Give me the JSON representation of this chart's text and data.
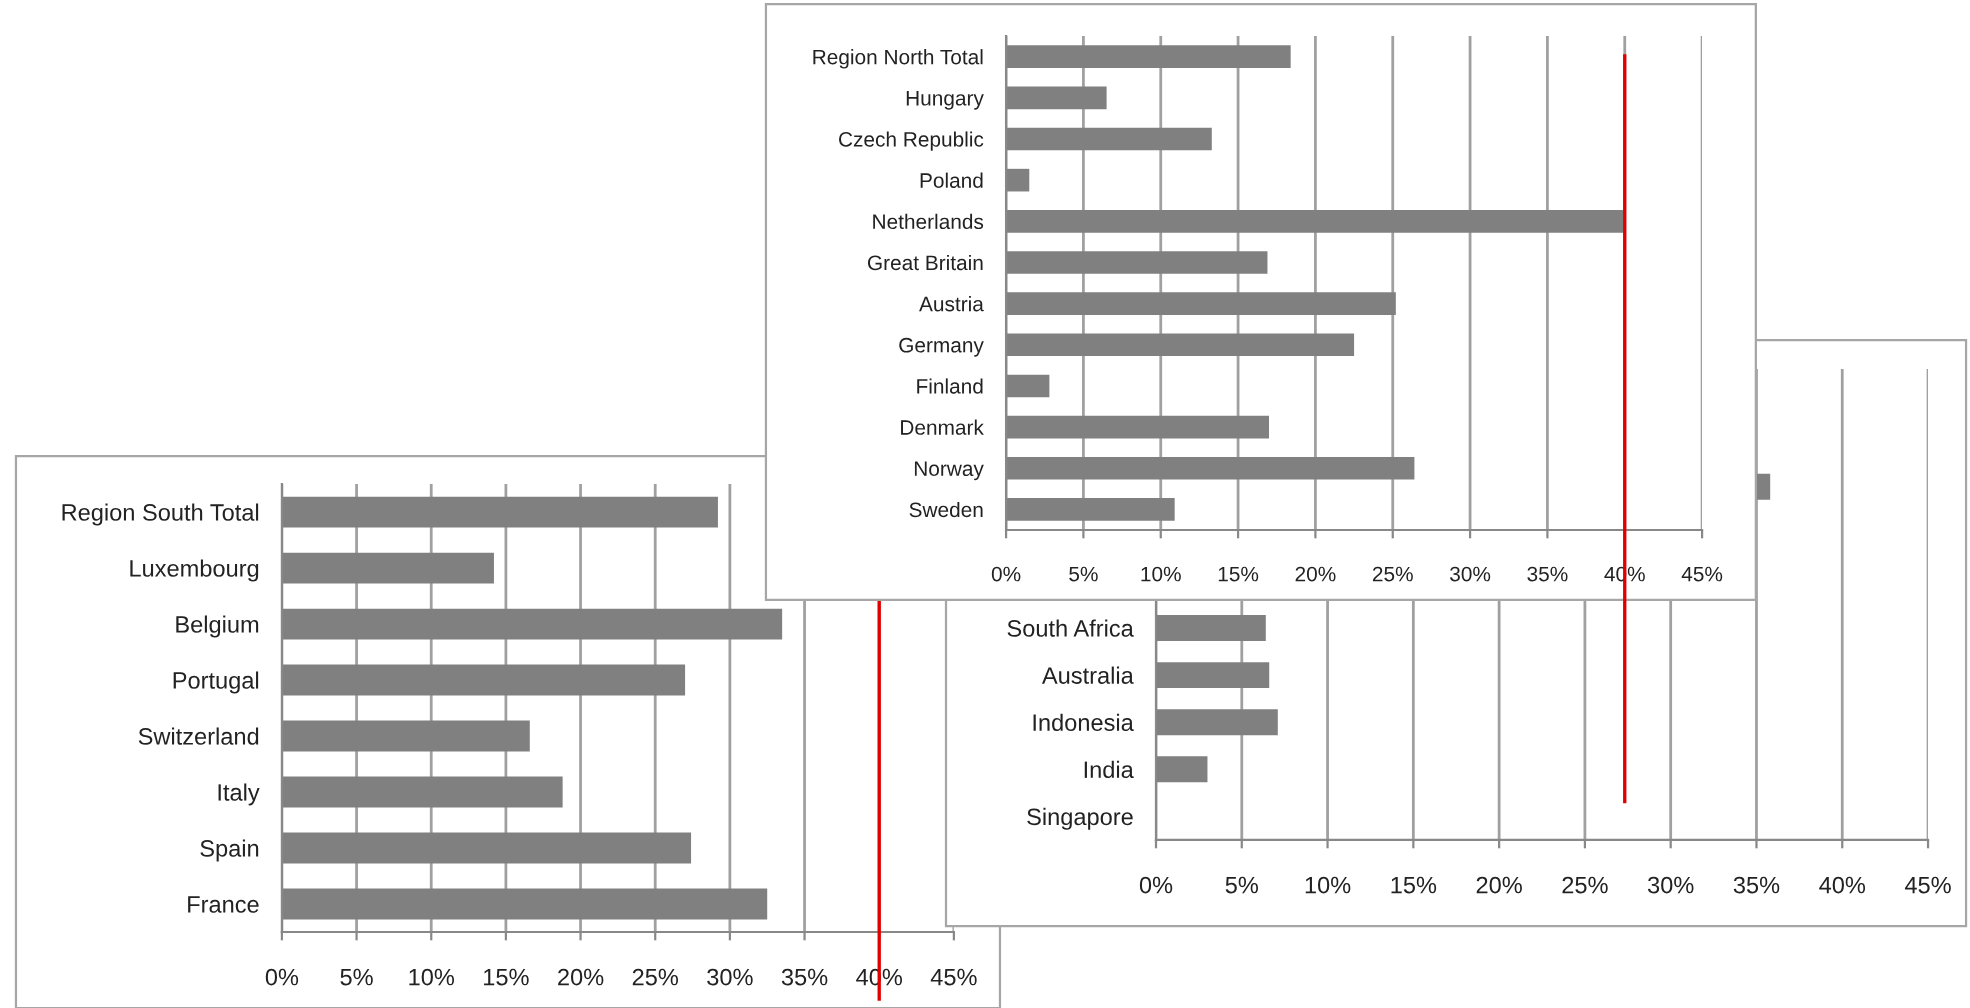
{
  "chart_data": [
    {
      "type": "bar",
      "orientation": "horizontal",
      "categories": [
        "Region South Total",
        "Luxembourg",
        "Belgium",
        "Portugal",
        "Switzerland",
        "Italy",
        "Spain",
        "France"
      ],
      "values": [
        29.2,
        14.2,
        33.5,
        27.0,
        16.6,
        18.8,
        27.4,
        32.5
      ],
      "color": "#808080",
      "xlim": [
        0,
        45
      ],
      "xticks": [
        {
          "value": 0,
          "label": "0%"
        },
        {
          "value": 5,
          "label": "5%"
        },
        {
          "value": 10,
          "label": "10%"
        },
        {
          "value": 15,
          "label": "15%"
        },
        {
          "value": 20,
          "label": "20%"
        },
        {
          "value": 25,
          "label": "25%"
        },
        {
          "value": 30,
          "label": "30%"
        },
        {
          "value": 35,
          "label": "35%"
        },
        {
          "value": 40,
          "label": "40%"
        },
        {
          "value": 45,
          "label": "45%"
        }
      ],
      "grid": "x",
      "ref_lines": [
        {
          "axis": "x",
          "value": 40,
          "color": "#e00000"
        }
      ]
    },
    {
      "type": "bar",
      "orientation": "horizontal",
      "categories": [
        null,
        null,
        null,
        null,
        null,
        "South Africa",
        "Australia",
        "Indonesia",
        "India",
        "Singapore"
      ],
      "values": [
        null,
        null,
        35.8,
        null,
        null,
        6.4,
        6.6,
        7.1,
        3.0,
        0
      ],
      "color": "#808080",
      "xlim": [
        0,
        45
      ],
      "xticks": [
        {
          "value": 0,
          "label": "0%"
        },
        {
          "value": 5,
          "label": "5%"
        },
        {
          "value": 10,
          "label": "10%"
        },
        {
          "value": 15,
          "label": "15%"
        },
        {
          "value": 20,
          "label": "20%"
        },
        {
          "value": 25,
          "label": "25%"
        },
        {
          "value": 30,
          "label": "30%"
        },
        {
          "value": 35,
          "label": "35%"
        },
        {
          "value": 40,
          "label": "40%"
        },
        {
          "value": 45,
          "label": "45%"
        }
      ],
      "grid": "x"
    },
    {
      "type": "bar",
      "orientation": "horizontal",
      "categories": [
        "Region North Total",
        "Hungary",
        "Czech Republic",
        "Poland",
        "Netherlands",
        "Great Britain",
        "Austria",
        "Germany",
        "Finland",
        "Denmark",
        "Norway",
        "Sweden"
      ],
      "values": [
        18.4,
        6.5,
        13.3,
        1.5,
        40.0,
        16.9,
        25.2,
        22.5,
        2.8,
        17.0,
        26.4,
        10.9
      ],
      "color": "#808080",
      "xlim": [
        0,
        45
      ],
      "xticks": [
        {
          "value": 0,
          "label": "0%"
        },
        {
          "value": 5,
          "label": "5%"
        },
        {
          "value": 10,
          "label": "10%"
        },
        {
          "value": 15,
          "label": "15%"
        },
        {
          "value": 20,
          "label": "20%"
        },
        {
          "value": 25,
          "label": "25%"
        },
        {
          "value": 30,
          "label": "30%"
        },
        {
          "value": 35,
          "label": "35%"
        },
        {
          "value": 40,
          "label": "40%"
        },
        {
          "value": 45,
          "label": "45%"
        }
      ],
      "grid": "x",
      "ref_lines": [
        {
          "axis": "x",
          "value": 40,
          "color": "#e00000"
        }
      ]
    }
  ]
}
